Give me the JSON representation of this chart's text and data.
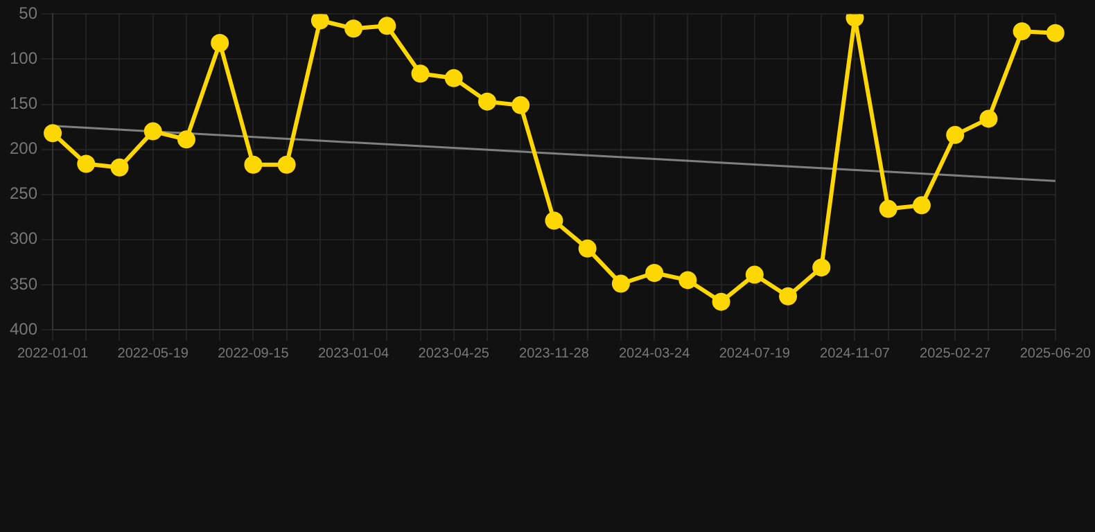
{
  "chart_data": {
    "type": "line",
    "categories": [
      "2022-01-01",
      null,
      null,
      "2022-05-19",
      null,
      null,
      "2022-09-15",
      null,
      null,
      "2023-01-04",
      null,
      null,
      "2023-04-25",
      null,
      null,
      "2023-11-28",
      null,
      null,
      "2024-03-24",
      null,
      null,
      "2024-07-19",
      null,
      null,
      "2024-11-07",
      null,
      null,
      "2025-02-27",
      null,
      null,
      "2025-06-20"
    ],
    "series": [
      {
        "color": "#ffd700",
        "values": [
          182,
          216,
          220,
          180,
          189,
          82,
          217,
          217,
          57,
          66,
          63,
          116,
          121,
          147,
          151,
          279,
          310,
          349,
          337,
          345,
          369,
          339,
          363,
          331,
          54,
          266,
          262,
          184,
          166,
          69,
          71
        ]
      },
      {
        "color": "#808080",
        "marker": "none",
        "values": [
          174,
          null,
          null,
          null,
          null,
          null,
          null,
          null,
          null,
          null,
          null,
          null,
          null,
          null,
          null,
          null,
          null,
          null,
          null,
          null,
          null,
          null,
          null,
          null,
          null,
          null,
          null,
          null,
          null,
          null,
          235
        ]
      }
    ],
    "ylim": [
      400,
      50
    ],
    "yticks": [
      50,
      100,
      150,
      200,
      250,
      300,
      350,
      400
    ],
    "grid": true,
    "legend": false,
    "marker": "circle",
    "line_style": "solid"
  }
}
